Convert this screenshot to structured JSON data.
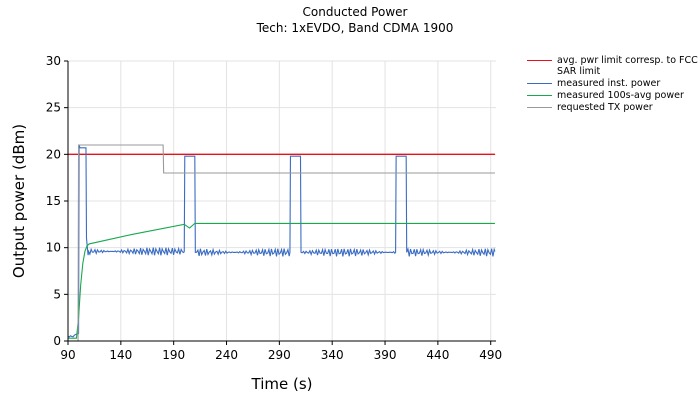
{
  "chart_data": {
    "type": "line",
    "title": "Conducted Power",
    "subtitle": "Tech: 1xEVDO, Band CDMA 1900",
    "xlabel": "Time (s)",
    "ylabel": "Output power (dBm)",
    "xlim": [
      90,
      495
    ],
    "ylim": [
      0,
      30
    ],
    "xticks": [
      90,
      140,
      190,
      240,
      290,
      340,
      390,
      440,
      490
    ],
    "yticks": [
      0,
      5,
      10,
      15,
      20,
      25,
      30
    ],
    "grid": true,
    "legend_position": "right",
    "series": [
      {
        "name": "avg. pwr limit corresp. to FCC SAR limit",
        "color": "#e8101a",
        "x": [
          90,
          494
        ],
        "y": [
          20,
          20
        ]
      },
      {
        "name": "measured inst. power",
        "color": "#3a6cc4",
        "x": [
          90,
          97,
          100,
          100.5,
          101,
          101.5,
          107,
          107.5,
          109,
          109.5,
          200,
          200.5,
          210,
          210.5,
          300,
          300.5,
          310,
          310.5,
          400,
          400.5,
          410,
          410.5,
          494
        ],
        "y": [
          0.5,
          0.7,
          0.8,
          21,
          20.8,
          20.7,
          20.7,
          11,
          9.2,
          9.6,
          9.6,
          19.8,
          19.8,
          9.5,
          9.5,
          19.8,
          19.8,
          9.5,
          9.5,
          19.8,
          19.8,
          9.5,
          9.6
        ]
      },
      {
        "name": "measured 100s-avg power",
        "color": "#1aa84f",
        "x": [
          90,
          98,
          100,
          102,
          104,
          106,
          108,
          110,
          150,
          200,
          205,
          210,
          494
        ],
        "y": [
          0.3,
          0.3,
          2.5,
          6,
          8.3,
          9.6,
          10.2,
          10.4,
          11.4,
          12.5,
          12.1,
          12.6,
          12.6
        ]
      },
      {
        "name": "requested TX power",
        "color": "#9a9a9a",
        "x": [
          90,
          99.5,
          100,
          180,
          180.5,
          494
        ],
        "y": [
          0,
          0,
          21,
          21,
          18,
          18
        ]
      }
    ]
  }
}
